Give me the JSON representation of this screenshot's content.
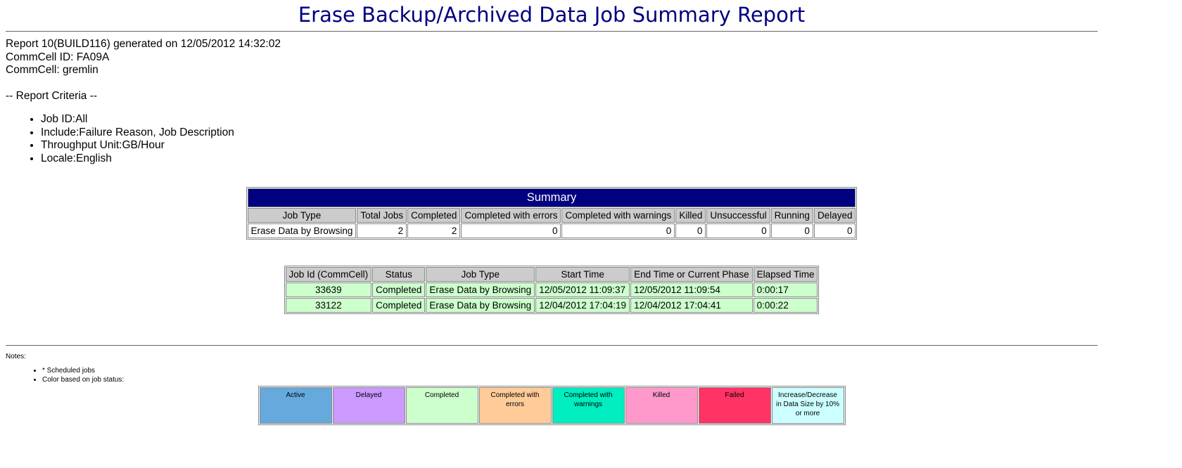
{
  "header": {
    "title": "Erase Backup/Archived Data Job Summary Report",
    "lines": [
      "Report 10(BUILD116) generated on 12/05/2012 14:32:02",
      "CommCell ID: FA09A",
      "CommCell: gremlin"
    ]
  },
  "criteria": {
    "heading": "-- Report Criteria --",
    "items": [
      "Job ID:All",
      "Include:Failure Reason, Job Description",
      "Throughput Unit:GB/Hour",
      "Locale:English"
    ]
  },
  "summary": {
    "title": "Summary",
    "columns": [
      "Job Type",
      "Total Jobs",
      "Completed",
      "Completed with errors",
      "Completed with warnings",
      "Killed",
      "Unsuccessful",
      "Running",
      "Delayed"
    ],
    "rows": [
      [
        "Erase Data by Browsing",
        2,
        2,
        0,
        0,
        0,
        0,
        0,
        0
      ]
    ]
  },
  "jobs": {
    "columns": [
      "Job Id (CommCell)",
      "Status",
      "Job Type",
      "Start Time",
      "End Time or Current Phase",
      "Elapsed Time"
    ],
    "row_color": "#ccffcc",
    "rows": [
      [
        "33639",
        "Completed",
        "Erase Data by Browsing",
        "12/05/2012 11:09:37",
        "12/05/2012 11:09:54",
        "0:00:17"
      ],
      [
        "33122",
        "Completed",
        "Erase Data by Browsing",
        "12/04/2012 17:04:19",
        "12/04/2012 17:04:41",
        "0:00:22"
      ]
    ]
  },
  "notes": {
    "heading": "Notes:",
    "items": [
      "* Scheduled jobs",
      "Color based on job status:"
    ],
    "legend": [
      {
        "label": "Active",
        "color": "#66aadd"
      },
      {
        "label": "Delayed",
        "color": "#cc99ff"
      },
      {
        "label": "Completed",
        "color": "#ccffcc"
      },
      {
        "label": "Completed with errors",
        "color": "#ffcc99"
      },
      {
        "label": "Completed with warnings",
        "color": "#00eec0"
      },
      {
        "label": "Killed",
        "color": "#ff99cc"
      },
      {
        "label": "Failed",
        "color": "#ff3366"
      },
      {
        "label": "Increase/Decrease in Data Size by 10% or more",
        "color": "#ccffff"
      }
    ]
  }
}
